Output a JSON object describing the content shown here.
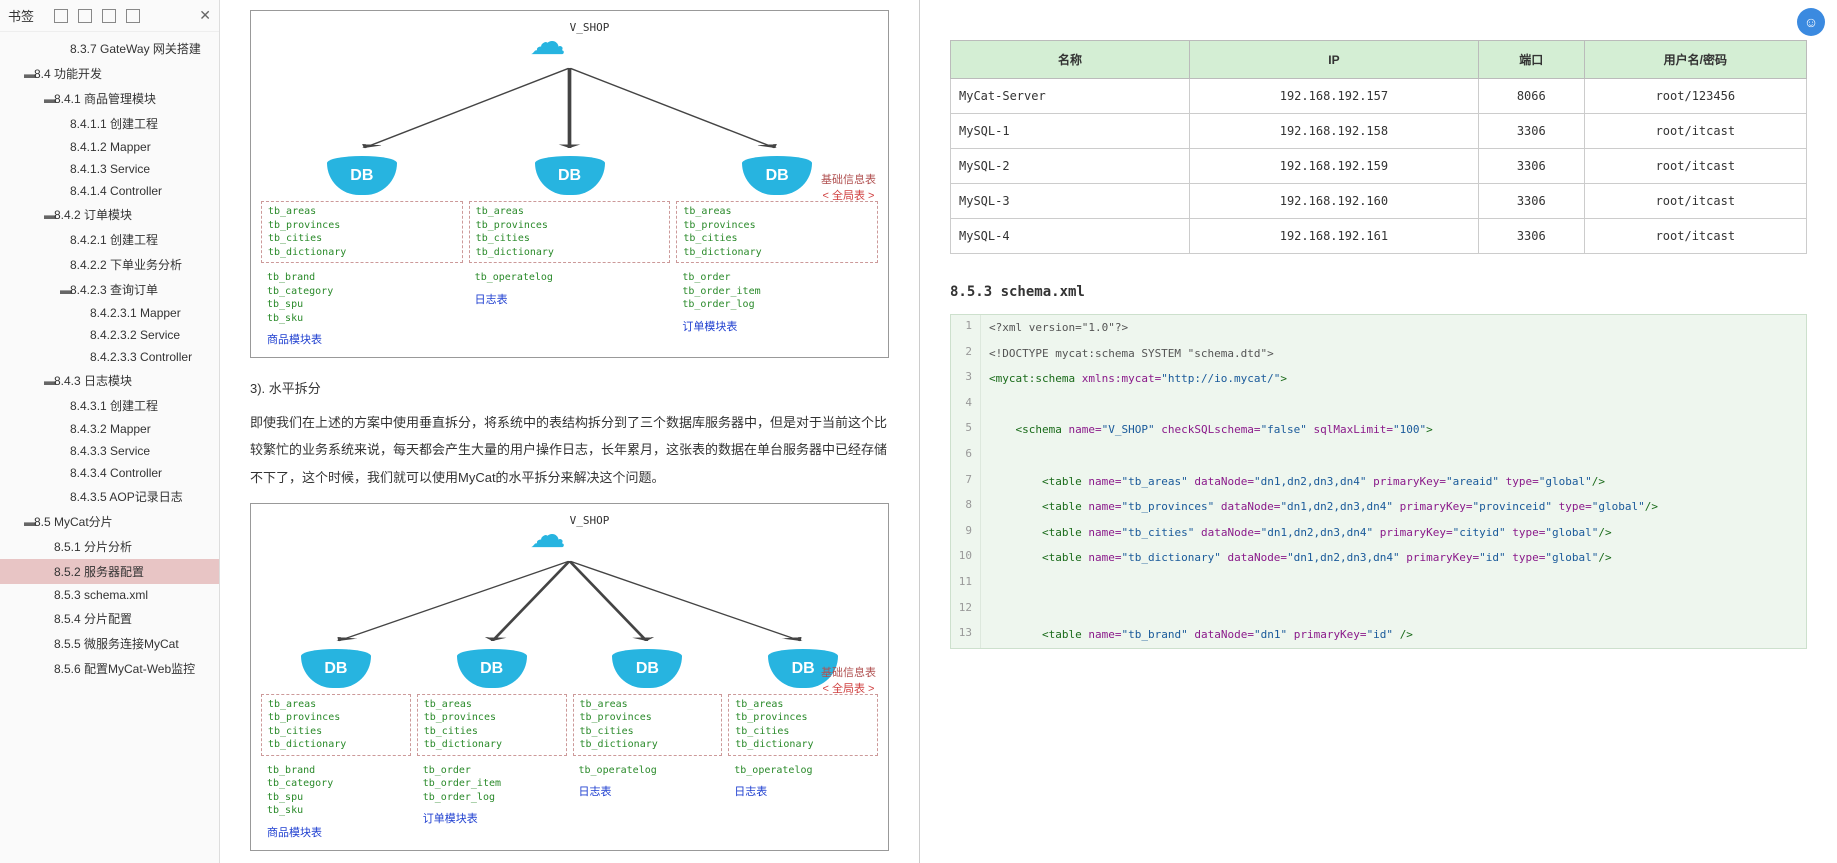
{
  "sidebar": {
    "title": "书签",
    "tree": [
      {
        "d": 3,
        "t": "",
        "l": "8.3.7 GateWay 网关搭建"
      },
      {
        "d": 1,
        "t": "▬",
        "l": "8.4 功能开发"
      },
      {
        "d": 2,
        "t": "▬",
        "l": "8.4.1 商品管理模块"
      },
      {
        "d": 3,
        "t": "",
        "l": "8.4.1.1 创建工程"
      },
      {
        "d": 3,
        "t": "",
        "l": "8.4.1.2 Mapper"
      },
      {
        "d": 3,
        "t": "",
        "l": "8.4.1.3 Service"
      },
      {
        "d": 3,
        "t": "",
        "l": "8.4.1.4 Controller"
      },
      {
        "d": 2,
        "t": "▬",
        "l": "8.4.2 订单模块"
      },
      {
        "d": 3,
        "t": "",
        "l": "8.4.2.1 创建工程"
      },
      {
        "d": 3,
        "t": "",
        "l": "8.4.2.2 下单业务分析"
      },
      {
        "d": 3,
        "t": "▬",
        "l": "8.4.2.3 查询订单"
      },
      {
        "d": 4,
        "t": "",
        "l": "8.4.2.3.1 Mapper"
      },
      {
        "d": 4,
        "t": "",
        "l": "8.4.2.3.2 Service"
      },
      {
        "d": 4,
        "t": "",
        "l": "8.4.2.3.3 Controller"
      },
      {
        "d": 2,
        "t": "▬",
        "l": "8.4.3 日志模块"
      },
      {
        "d": 3,
        "t": "",
        "l": "8.4.3.1 创建工程"
      },
      {
        "d": 3,
        "t": "",
        "l": "8.4.3.2 Mapper"
      },
      {
        "d": 3,
        "t": "",
        "l": "8.4.3.3 Service"
      },
      {
        "d": 3,
        "t": "",
        "l": "8.4.3.4 Controller"
      },
      {
        "d": 3,
        "t": "",
        "l": "8.4.3.5 AOP记录日志"
      },
      {
        "d": 1,
        "t": "▬",
        "l": "8.5 MyCat分片"
      },
      {
        "d": 2,
        "t": "",
        "l": "8.5.1 分片分析"
      },
      {
        "d": 2,
        "t": "",
        "l": "8.5.2 服务器配置",
        "sel": true
      },
      {
        "d": 2,
        "t": "",
        "l": "8.5.3 schema.xml"
      },
      {
        "d": 2,
        "t": "",
        "l": "8.5.4 分片配置"
      },
      {
        "d": 2,
        "t": "",
        "l": "8.5.5 微服务连接MyCat"
      },
      {
        "d": 2,
        "t": "",
        "l": "8.5.6 配置MyCat-Web监控"
      }
    ]
  },
  "diagram1": {
    "vshop": "V_SHOP",
    "dblabel": "DB",
    "side_t1": "基础信息表",
    "side_t2": "< 全局表 >",
    "cols": [
      {
        "box1": "tb_areas\ntb_provinces\ntb_cities\ntb_dictionary",
        "box2": "tb_brand\ntb_category\ntb_spu\ntb_sku",
        "mod": "商品模块表"
      },
      {
        "box1": "tb_areas\ntb_provinces\ntb_cities\ntb_dictionary",
        "box2": "tb_operatelog",
        "mod": "日志表"
      },
      {
        "box1": "tb_areas\ntb_provinces\ntb_cities\ntb_dictionary",
        "box2": "tb_order\ntb_order_item\ntb_order_log",
        "mod": "订单模块表"
      }
    ]
  },
  "para_h": "3). 水平拆分",
  "para": "即使我们在上述的方案中使用垂直拆分，将系统中的表结构拆分到了三个数据库服务器中，但是对于当前这个比较繁忙的业务系统来说，每天都会产生大量的用户操作日志，长年累月，这张表的数据在单台服务器中已经存储不下了，这个时候，我们就可以使用MyCat的水平拆分来解决这个问题。",
  "diagram2": {
    "vshop": "V_SHOP",
    "dblabel": "DB",
    "side_t1": "基础信息表",
    "side_t2": "< 全局表 >",
    "cols": [
      {
        "box1": "tb_areas\ntb_provinces\ntb_cities\ntb_dictionary",
        "box2": "tb_brand\ntb_category\ntb_spu\ntb_sku",
        "mod": "商品模块表"
      },
      {
        "box1": "tb_areas\ntb_provinces\ntb_cities\ntb_dictionary",
        "box2": "tb_order\ntb_order_item\ntb_order_log",
        "mod": "订单模块表"
      },
      {
        "box1": "tb_areas\ntb_provinces\ntb_cities\ntb_dictionary",
        "box2": "tb_operatelog",
        "mod": "日志表"
      },
      {
        "box1": "tb_areas\ntb_provinces\ntb_cities\ntb_dictionary",
        "box2": "tb_operatelog",
        "mod": "日志表"
      }
    ]
  },
  "table": {
    "headers": [
      "名称",
      "IP",
      "端口",
      "用户名/密码"
    ],
    "rows": [
      [
        "MyCat-Server",
        "192.168.192.157",
        "8066",
        "root/123456"
      ],
      [
        "MySQL-1",
        "192.168.192.158",
        "3306",
        "root/itcast"
      ],
      [
        "MySQL-2",
        "192.168.192.159",
        "3306",
        "root/itcast"
      ],
      [
        "MySQL-3",
        "192.168.192.160",
        "3306",
        "root/itcast"
      ],
      [
        "MySQL-4",
        "192.168.192.161",
        "3306",
        "root/itcast"
      ]
    ]
  },
  "sec_h": "8.5.3 schema.xml",
  "code": [
    {
      "n": 1,
      "html": "<span class='c-txt'>&lt;?xml version=\"1.0\"?&gt;</span>"
    },
    {
      "n": 2,
      "html": "<span class='c-txt'>&lt;!DOCTYPE mycat:schema SYSTEM \"schema.dtd\"&gt;</span>"
    },
    {
      "n": 3,
      "html": "<span class='c-tag'>&lt;mycat:schema</span> <span class='c-attr'>xmlns:mycat=</span><span class='c-str'>\"http://io.mycat/\"</span><span class='c-tag'>&gt;</span>"
    },
    {
      "n": 4,
      "html": " "
    },
    {
      "n": 5,
      "html": "    <span class='c-tag'>&lt;schema</span> <span class='c-attr'>name=</span><span class='c-str'>\"V_SHOP\"</span> <span class='c-attr'>checkSQLschema=</span><span class='c-str'>\"false\"</span> <span class='c-attr'>sqlMaxLimit=</span><span class='c-str'>\"100\"</span><span class='c-tag'>&gt;</span>"
    },
    {
      "n": 6,
      "html": " "
    },
    {
      "n": 7,
      "html": "        <span class='c-tag'>&lt;table</span> <span class='c-attr'>name=</span><span class='c-str'>\"tb_areas\"</span> <span class='c-attr'>dataNode=</span><span class='c-str'>\"dn1,dn2,dn3,dn4\"</span> <span class='c-attr'>primaryKey=</span><span class='c-str'>\"areaid\"</span> <span class='c-attr'>type=</span><span class='c-str'>\"global\"</span><span class='c-tag'>/&gt;</span>"
    },
    {
      "n": 8,
      "html": "        <span class='c-tag'>&lt;table</span> <span class='c-attr'>name=</span><span class='c-str'>\"tb_provinces\"</span> <span class='c-attr'>dataNode=</span><span class='c-str'>\"dn1,dn2,dn3,dn4\"</span> <span class='c-attr'>primaryKey=</span><span class='c-str'>\"provinceid\"</span> <span class='c-attr'>type=</span><span class='c-str'>\"global\"</span><span class='c-tag'>/&gt;</span>"
    },
    {
      "n": 9,
      "html": "        <span class='c-tag'>&lt;table</span> <span class='c-attr'>name=</span><span class='c-str'>\"tb_cities\"</span> <span class='c-attr'>dataNode=</span><span class='c-str'>\"dn1,dn2,dn3,dn4\"</span> <span class='c-attr'>primaryKey=</span><span class='c-str'>\"cityid\"</span> <span class='c-attr'>type=</span><span class='c-str'>\"global\"</span><span class='c-tag'>/&gt;</span>"
    },
    {
      "n": 10,
      "html": "        <span class='c-tag'>&lt;table</span> <span class='c-attr'>name=</span><span class='c-str'>\"tb_dictionary\"</span> <span class='c-attr'>dataNode=</span><span class='c-str'>\"dn1,dn2,dn3,dn4\"</span> <span class='c-attr'>primaryKey=</span><span class='c-str'>\"id\"</span> <span class='c-attr'>type=</span><span class='c-str'>\"global\"</span><span class='c-tag'>/&gt;</span>"
    },
    {
      "n": 11,
      "html": " "
    },
    {
      "n": 12,
      "html": " "
    },
    {
      "n": 13,
      "html": "        <span class='c-tag'>&lt;table</span> <span class='c-attr'>name=</span><span class='c-str'>\"tb_brand\"</span> <span class='c-attr'>dataNode=</span><span class='c-str'>\"dn1\"</span> <span class='c-attr'>primaryKey=</span><span class='c-str'>\"id\"</span> <span class='c-tag'>/&gt;</span>"
    }
  ]
}
